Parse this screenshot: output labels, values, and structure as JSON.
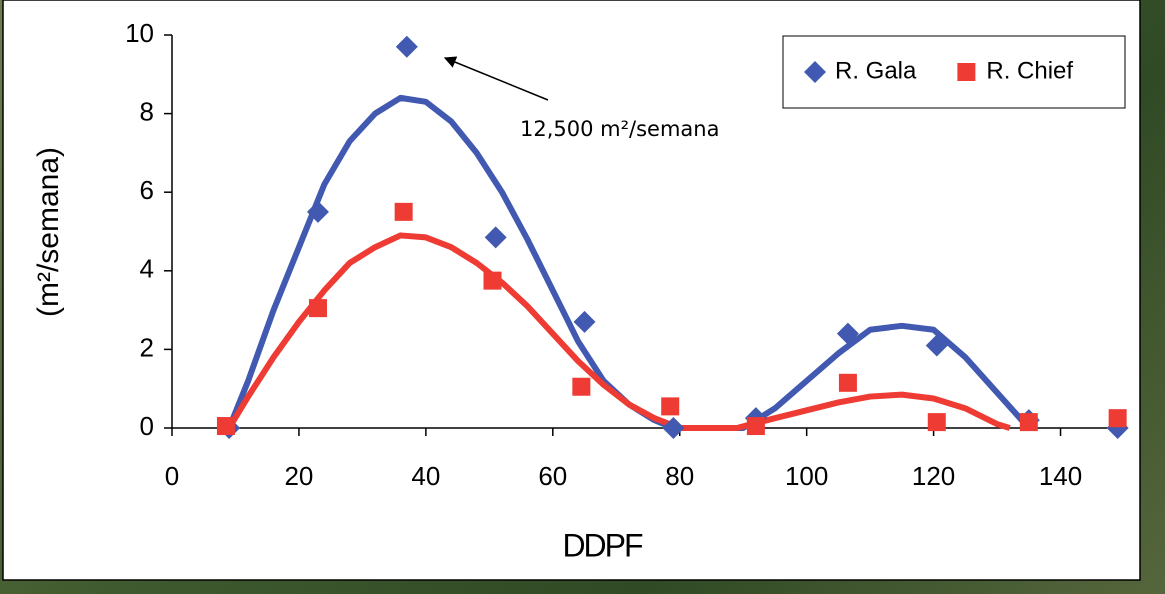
{
  "chart_data": {
    "type": "scatter",
    "xlabel": "DDPF",
    "ylabel": "(m²/semana)",
    "annotation": "12,500 m²/semana",
    "xlim": [
      0,
      150
    ],
    "xticks": [
      0,
      20,
      40,
      60,
      80,
      100,
      120,
      140
    ],
    "ylim": [
      0,
      10
    ],
    "yticks": [
      0,
      2,
      4,
      6,
      8,
      10
    ],
    "legend": "upper right",
    "series": [
      {
        "name": "R. Gala",
        "color": "#4159b0",
        "marker": "diamond",
        "x": [
          9,
          23,
          37,
          51,
          65,
          79,
          92,
          106.5,
          120.5,
          135,
          149
        ],
        "values": [
          0,
          5.5,
          9.7,
          4.85,
          2.7,
          0,
          0.25,
          2.4,
          2.1,
          0.2,
          0
        ],
        "trend": {
          "color": "#4159b0",
          "x": [
            9,
            12,
            16,
            20,
            24,
            28,
            32,
            36,
            40,
            44,
            48,
            52,
            56,
            60,
            64,
            68,
            72,
            76,
            79,
            84,
            90,
            95,
            100,
            105,
            110,
            115,
            120,
            125,
            130,
            135
          ],
          "values": [
            0,
            1.2,
            3,
            4.6,
            6.2,
            7.3,
            8,
            8.4,
            8.3,
            7.8,
            7,
            6,
            4.8,
            3.5,
            2.2,
            1.2,
            0.6,
            0.2,
            0,
            0,
            0,
            0.5,
            1.2,
            1.9,
            2.5,
            2.6,
            2.5,
            1.8,
            0.9,
            0
          ]
        }
      },
      {
        "name": "R. Chief",
        "color": "#ee3b33",
        "marker": "square",
        "x": [
          8.5,
          23,
          36.5,
          50.5,
          64.5,
          78.5,
          92,
          106.5,
          120.5,
          135,
          149
        ],
        "values": [
          0.05,
          3.05,
          5.5,
          3.75,
          1.05,
          0.55,
          0.05,
          1.15,
          0.15,
          0.15,
          0.25
        ],
        "trend": {
          "color": "#ee3b33",
          "x": [
            9,
            12,
            16,
            20,
            24,
            28,
            32,
            36,
            40,
            44,
            48,
            52,
            56,
            60,
            64,
            68,
            72,
            76,
            80,
            89,
            95,
            100,
            105,
            110,
            115,
            120,
            125,
            130,
            132
          ],
          "values": [
            0,
            0.8,
            1.8,
            2.7,
            3.5,
            4.2,
            4.6,
            4.9,
            4.85,
            4.6,
            4.2,
            3.7,
            3.1,
            2.4,
            1.7,
            1.1,
            0.6,
            0.25,
            0,
            0,
            0.25,
            0.45,
            0.65,
            0.8,
            0.85,
            0.75,
            0.5,
            0.1,
            0
          ]
        }
      }
    ]
  }
}
